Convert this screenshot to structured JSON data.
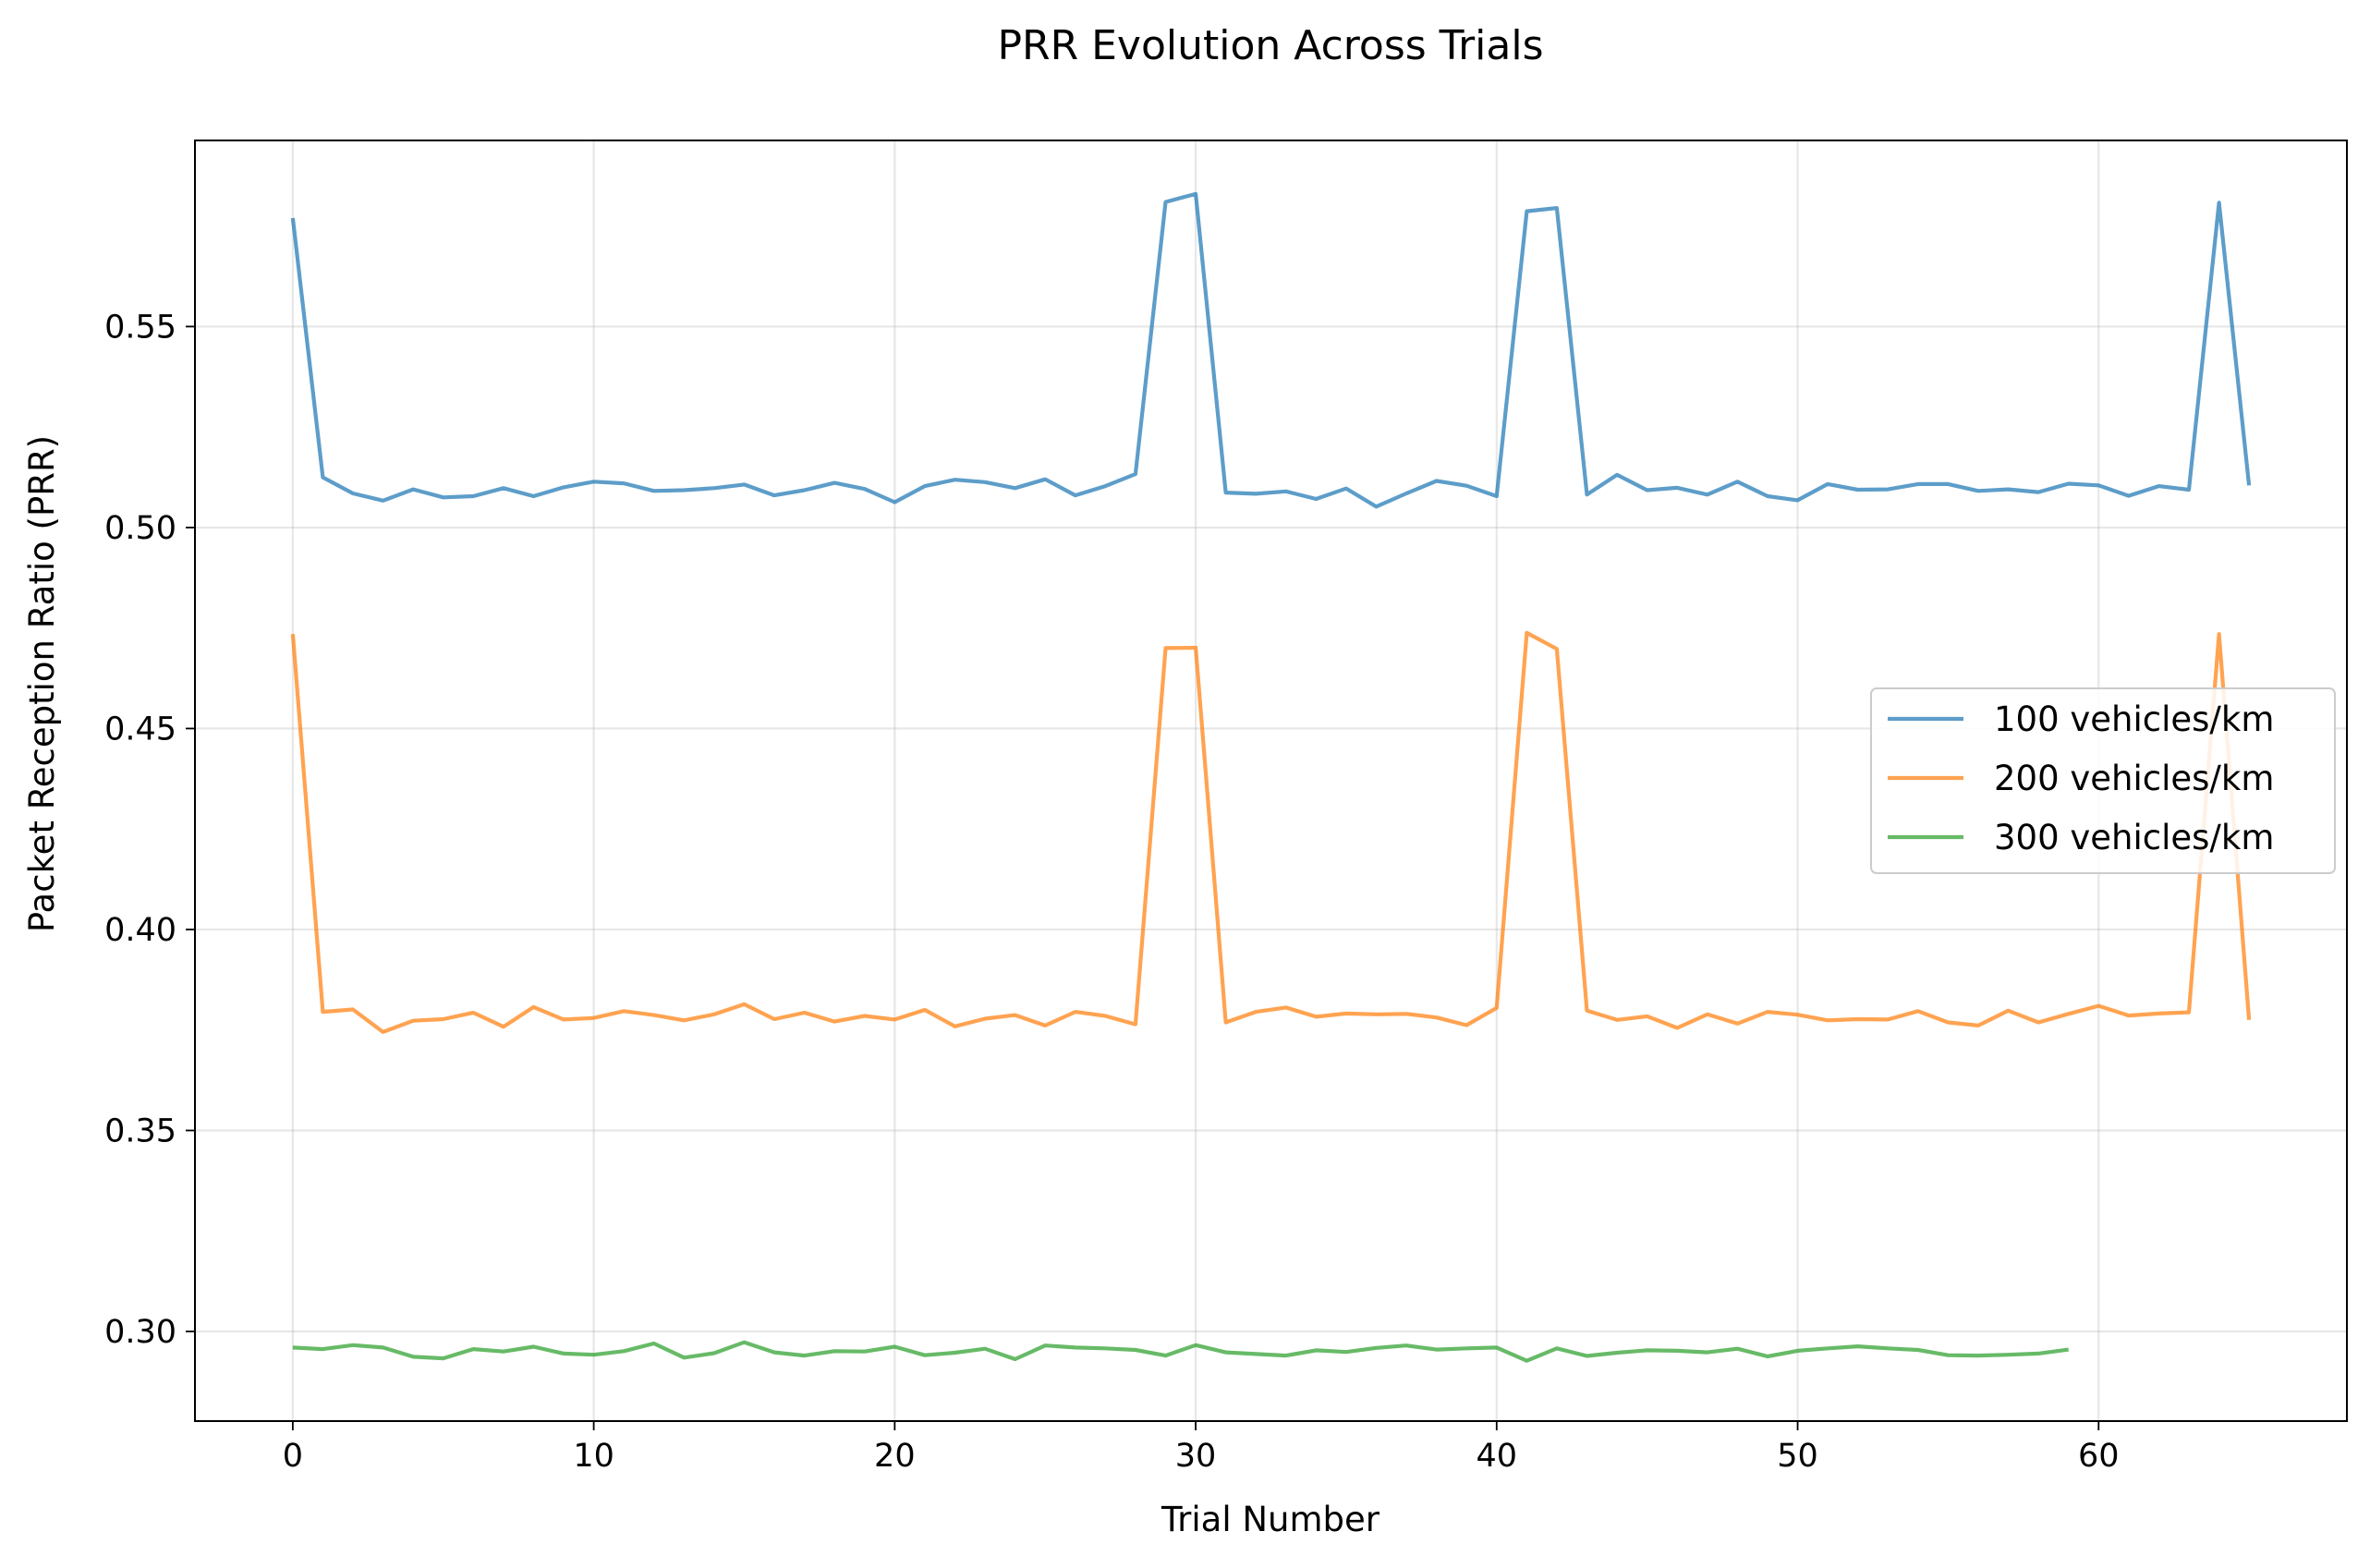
{
  "chart_data": {
    "type": "line",
    "title": "PRR Evolution Across Trials",
    "xlabel": "Trial Number",
    "ylabel": "Packet Reception Ratio (PRR)",
    "xlim": [
      -3.25,
      68.25
    ],
    "ylim": [
      0.2777,
      0.5963
    ],
    "xticks": [
      0,
      10,
      20,
      30,
      40,
      50,
      60
    ],
    "yticks": [
      0.3,
      0.35,
      0.4,
      0.45,
      0.5,
      0.55
    ],
    "ytick_labels": [
      "0.30",
      "0.35",
      "0.40",
      "0.45",
      "0.50",
      "0.55"
    ],
    "grid": true,
    "legend_position": "center-right",
    "series": [
      {
        "name": "100 vehicles/km",
        "color": "#1f77b4",
        "x_start": 0,
        "values": [
          0.577,
          0.5125,
          0.5085,
          0.5067,
          0.5095,
          0.5075,
          0.5078,
          0.5098,
          0.5078,
          0.51,
          0.5114,
          0.511,
          0.5091,
          0.5093,
          0.5098,
          0.5107,
          0.508,
          0.5093,
          0.5111,
          0.5096,
          0.5063,
          0.5103,
          0.5119,
          0.5113,
          0.5098,
          0.512,
          0.508,
          0.5103,
          0.5133,
          0.581,
          0.583,
          0.5087,
          0.5084,
          0.509,
          0.5071,
          0.5097,
          0.5052,
          0.5085,
          0.5116,
          0.5104,
          0.5078,
          0.5787,
          0.5795,
          0.5082,
          0.5131,
          0.5093,
          0.5099,
          0.5082,
          0.5114,
          0.5078,
          0.5068,
          0.5108,
          0.5094,
          0.5095,
          0.5108,
          0.5108,
          0.5091,
          0.5095,
          0.5088,
          0.5109,
          0.5105,
          0.5079,
          0.5103,
          0.5094,
          0.5808,
          0.5105
        ]
      },
      {
        "name": "200 vehicles/km",
        "color": "#ff7f0e",
        "x_start": 0,
        "values": [
          0.4735,
          0.3795,
          0.3801,
          0.3745,
          0.3773,
          0.3777,
          0.3793,
          0.3758,
          0.3807,
          0.3776,
          0.378,
          0.3797,
          0.3787,
          0.3774,
          0.3789,
          0.3814,
          0.3777,
          0.3793,
          0.3771,
          0.3785,
          0.3776,
          0.38,
          0.3759,
          0.3778,
          0.3787,
          0.3761,
          0.3795,
          0.3785,
          0.3764,
          0.47,
          0.4701,
          0.3769,
          0.3795,
          0.3806,
          0.3783,
          0.3791,
          0.3789,
          0.379,
          0.3781,
          0.3762,
          0.3805,
          0.4738,
          0.4698,
          0.3798,
          0.3775,
          0.3784,
          0.3755,
          0.3789,
          0.3766,
          0.3795,
          0.3788,
          0.3774,
          0.3777,
          0.3776,
          0.3797,
          0.3769,
          0.3761,
          0.3798,
          0.3769,
          0.379,
          0.381,
          0.3786,
          0.3791,
          0.3794,
          0.4735,
          0.3775
        ]
      },
      {
        "name": "300 vehicles/km",
        "color": "#2ca02c",
        "x_start": 0,
        "values": [
          0.296,
          0.2956,
          0.2966,
          0.296,
          0.2937,
          0.2933,
          0.2956,
          0.295,
          0.2962,
          0.2945,
          0.2942,
          0.2951,
          0.297,
          0.2935,
          0.2946,
          0.2973,
          0.2948,
          0.294,
          0.2951,
          0.295,
          0.2962,
          0.2941,
          0.2947,
          0.2957,
          0.2931,
          0.2965,
          0.296,
          0.2958,
          0.2954,
          0.294,
          0.2966,
          0.2948,
          0.2944,
          0.294,
          0.2953,
          0.2949,
          0.2959,
          0.2965,
          0.2955,
          0.2958,
          0.296,
          0.2927,
          0.2958,
          0.2939,
          0.2947,
          0.2953,
          0.2952,
          0.2948,
          0.2957,
          0.2938,
          0.2952,
          0.2958,
          0.2963,
          0.2958,
          0.2954,
          0.2941,
          0.294,
          0.2942,
          0.2945,
          0.2955
        ]
      }
    ]
  }
}
